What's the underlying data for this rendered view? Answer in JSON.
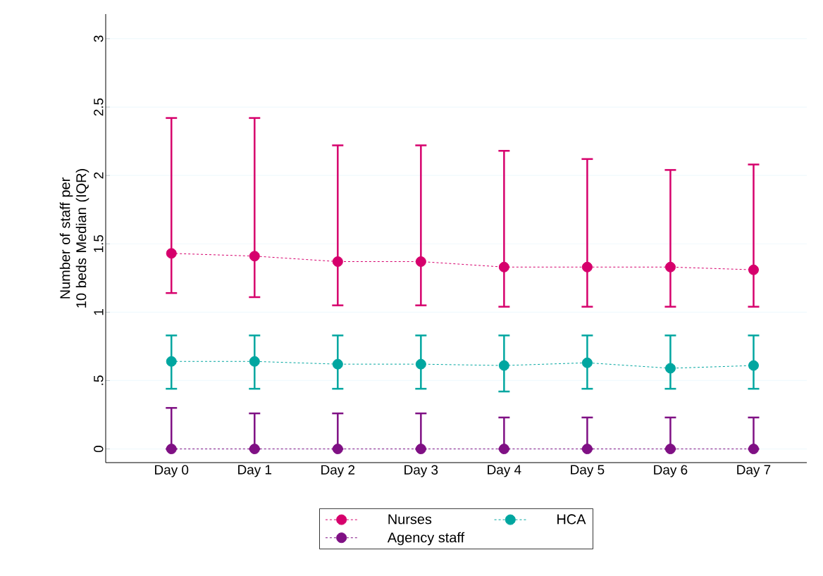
{
  "chart_data": {
    "type": "line",
    "ylabel": "Number of staff per 10 beds Median (IQR)",
    "categories": [
      "Day 0",
      "Day 1",
      "Day 2",
      "Day 3",
      "Day 4",
      "Day 5",
      "Day 6",
      "Day 7"
    ],
    "series": [
      {
        "name": "Nurses",
        "color": "#d6006c",
        "values": [
          1.43,
          1.41,
          1.37,
          1.37,
          1.33,
          1.33,
          1.33,
          1.31
        ],
        "errors": [
          [
            1.14,
            2.42
          ],
          [
            1.11,
            2.42
          ],
          [
            1.05,
            2.22
          ],
          [
            1.05,
            2.22
          ],
          [
            1.04,
            2.18
          ],
          [
            1.04,
            2.12
          ],
          [
            1.04,
            2.04
          ],
          [
            1.04,
            2.08
          ]
        ]
      },
      {
        "name": "HCA",
        "color": "#00a6a0",
        "values": [
          0.64,
          0.64,
          0.62,
          0.62,
          0.61,
          0.63,
          0.59,
          0.61
        ],
        "errors": [
          [
            0.44,
            0.83
          ],
          [
            0.44,
            0.83
          ],
          [
            0.44,
            0.83
          ],
          [
            0.44,
            0.83
          ],
          [
            0.42,
            0.83
          ],
          [
            0.44,
            0.83
          ],
          [
            0.44,
            0.83
          ],
          [
            0.44,
            0.83
          ]
        ]
      },
      {
        "name": "Agency staff",
        "color": "#7f1084",
        "values": [
          0,
          0,
          0,
          0,
          0,
          0,
          0,
          0
        ],
        "errors": [
          [
            0,
            0.3
          ],
          [
            0,
            0.26
          ],
          [
            0,
            0.26
          ],
          [
            0,
            0.26
          ],
          [
            0,
            0.23
          ],
          [
            0,
            0.23
          ],
          [
            0,
            0.23
          ],
          [
            0,
            0.23
          ]
        ]
      }
    ],
    "ylim": [
      -0.1,
      3.18
    ],
    "yticks": [
      0,
      {
        "value": 0.5,
        "label": ".5"
      },
      1,
      1.5,
      2,
      2.5,
      3
    ],
    "grid": "y",
    "legend": "bottom",
    "marker": "circle",
    "line_style": "dashed"
  }
}
